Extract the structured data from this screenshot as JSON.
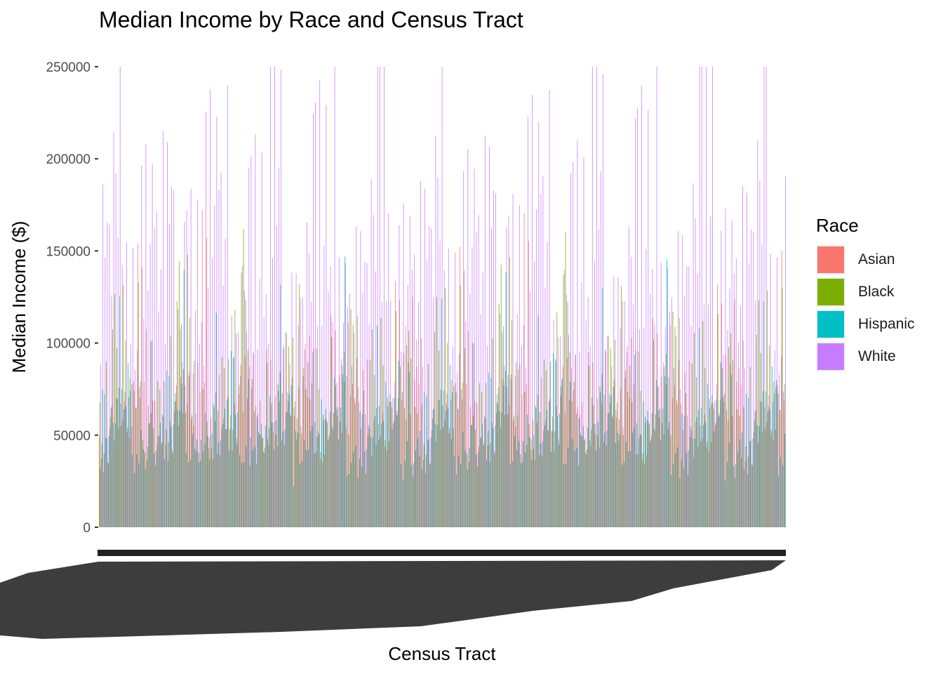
{
  "chart_data": {
    "type": "bar",
    "title": "Median Income by Race and Census Tract",
    "xlabel": "Census Tract",
    "ylabel": "Median Income ($)",
    "ylim": [
      0,
      250000
    ],
    "yticks": [
      "0",
      "50000",
      "100000",
      "150000",
      "200000",
      "250000"
    ],
    "legend_title": "Race",
    "legend_position": "right",
    "grid": false,
    "categories_note": "",
    "series": [
      {
        "name": "Asian",
        "color": "#F8766D"
      },
      {
        "name": "Black",
        "color": "#7CAE00"
      },
      {
        "name": "Hispanic",
        "color": "#00BFC4"
      },
      {
        "name": "White",
        "color": "#C77CFF"
      }
    ],
    "tract_count": 320,
    "value_pattern": {
      "White": [
        165000,
        120000,
        210000,
        250000,
        175000,
        140000,
        250000,
        160000,
        130000,
        95000,
        110000,
        180000,
        250000,
        150000,
        120000,
        100000,
        195000,
        150000,
        120000,
        250000,
        175000,
        200000,
        250000,
        150000,
        220000,
        140000,
        115000,
        218000,
        175000,
        140000
      ],
      "Asian": [
        90000,
        60000,
        120000,
        70000,
        100000,
        80000,
        157000,
        65000,
        55000,
        75000,
        85000,
        60000,
        95000,
        70000,
        50000,
        60000,
        80000,
        72000,
        90000,
        66000,
        137000,
        78000,
        85000,
        70000,
        88000,
        60000,
        95000,
        75000,
        55000,
        68000
      ],
      "Black": [
        70000,
        45000,
        60000,
        100000,
        55000,
        48000,
        85000,
        60000,
        75000,
        120000,
        65000,
        80000,
        110000,
        60000,
        90000,
        131000,
        70000,
        55000,
        75000,
        100000,
        140000,
        95000,
        150000,
        85000,
        120000,
        70000,
        60000,
        105000,
        80000,
        112000
      ],
      "Hispanic": [
        60000,
        50000,
        70000,
        45000,
        55000,
        65000,
        40000,
        80000,
        50000,
        123000,
        60000,
        70000,
        55000,
        90000,
        65000,
        58000,
        72000,
        75000,
        60000,
        80000,
        85000,
        70000,
        65000,
        60000,
        130000,
        58000,
        62000,
        55000,
        50000,
        68000
      ]
    }
  }
}
